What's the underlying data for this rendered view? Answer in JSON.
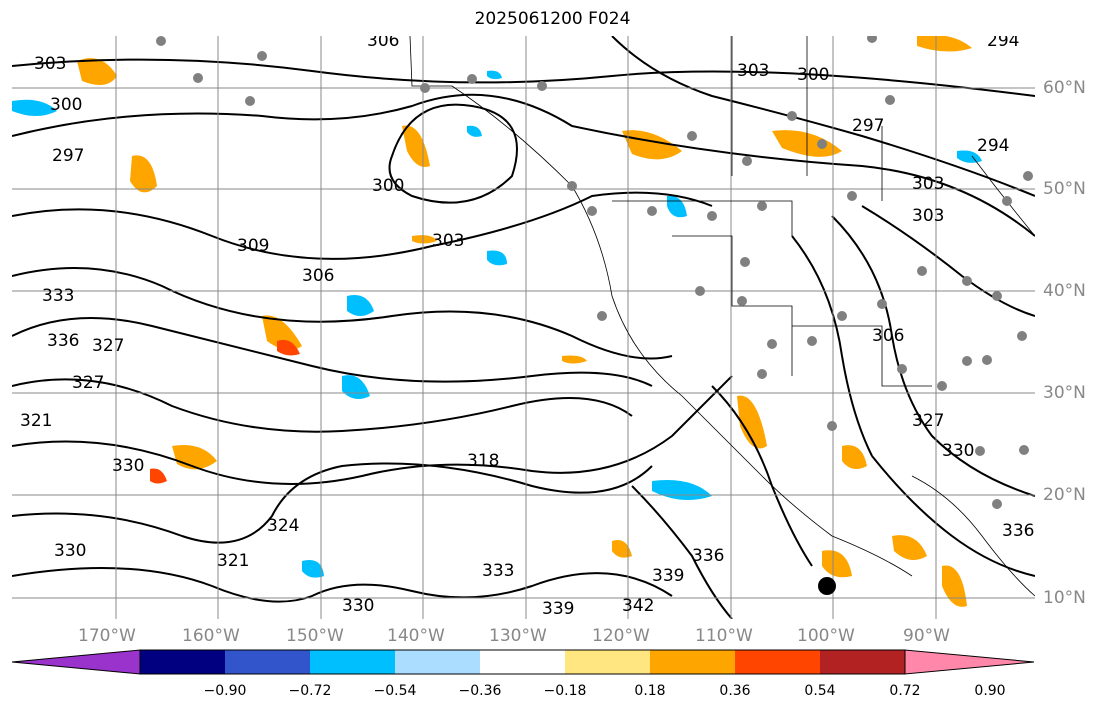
{
  "title": "2025061200 F024",
  "latitude_labels": [
    "60°N",
    "50°N",
    "40°N",
    "30°N",
    "20°N",
    "10°N"
  ],
  "longitude_labels": [
    "170°W",
    "160°W",
    "150°W",
    "140°W",
    "130°W",
    "120°W",
    "110°W",
    "100°W",
    "90°W"
  ],
  "contour_labels": [
    "303",
    "300",
    "306",
    "297",
    "300",
    "303",
    "306",
    "309",
    "333",
    "336",
    "327",
    "327",
    "321",
    "330",
    "330",
    "321",
    "324",
    "330",
    "318",
    "333",
    "336",
    "339",
    "342",
    "339",
    "330",
    "327",
    "303",
    "300",
    "297",
    "294",
    "303",
    "294",
    "336",
    "306",
    "303"
  ],
  "colorbar": {
    "colors": [
      "#9933cc",
      "#000080",
      "#3355cc",
      "#00bfff",
      "#aaddff",
      "#ffffff",
      "#ffe680",
      "#ffa500",
      "#ff4500",
      "#b22222",
      "#ff88aa"
    ],
    "tick_labels": [
      "−0.90",
      "−0.72",
      "−0.54",
      "−0.36",
      "−0.18",
      "0.18",
      "0.36",
      "0.54",
      "0.72",
      "0.90"
    ]
  },
  "colors": {
    "contour": "#000000",
    "grid": "#888888",
    "stations": "#808080",
    "marker": "#000000"
  }
}
